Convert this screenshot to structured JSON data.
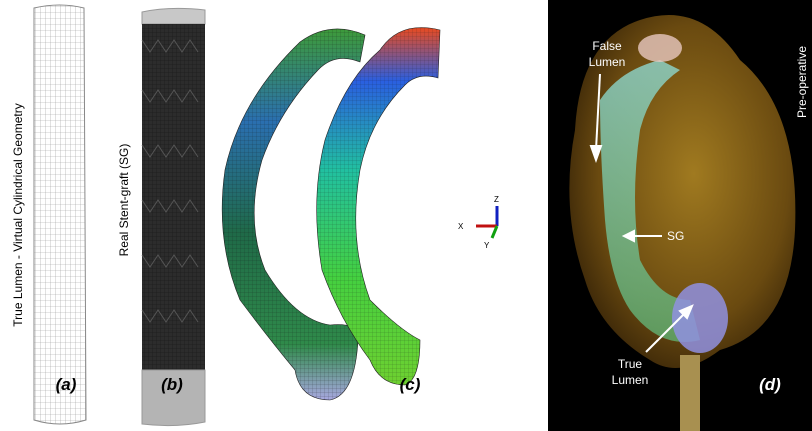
{
  "panels": {
    "a": {
      "label": "(a)",
      "caption": "True Lumen - Virtual Cylindrical Geometry"
    },
    "b": {
      "label": "(b)",
      "caption": "Real Stent-graft (SG)"
    },
    "c": {
      "label": "(c)",
      "axes": {
        "z": "Z",
        "x": "X",
        "y": "Y"
      }
    },
    "d": {
      "label": "(d)",
      "corner": "Pre-operative",
      "false_lumen": [
        "False",
        "Lumen"
      ],
      "sg": "SG",
      "true_lumen": [
        "True",
        "Lumen"
      ]
    }
  }
}
